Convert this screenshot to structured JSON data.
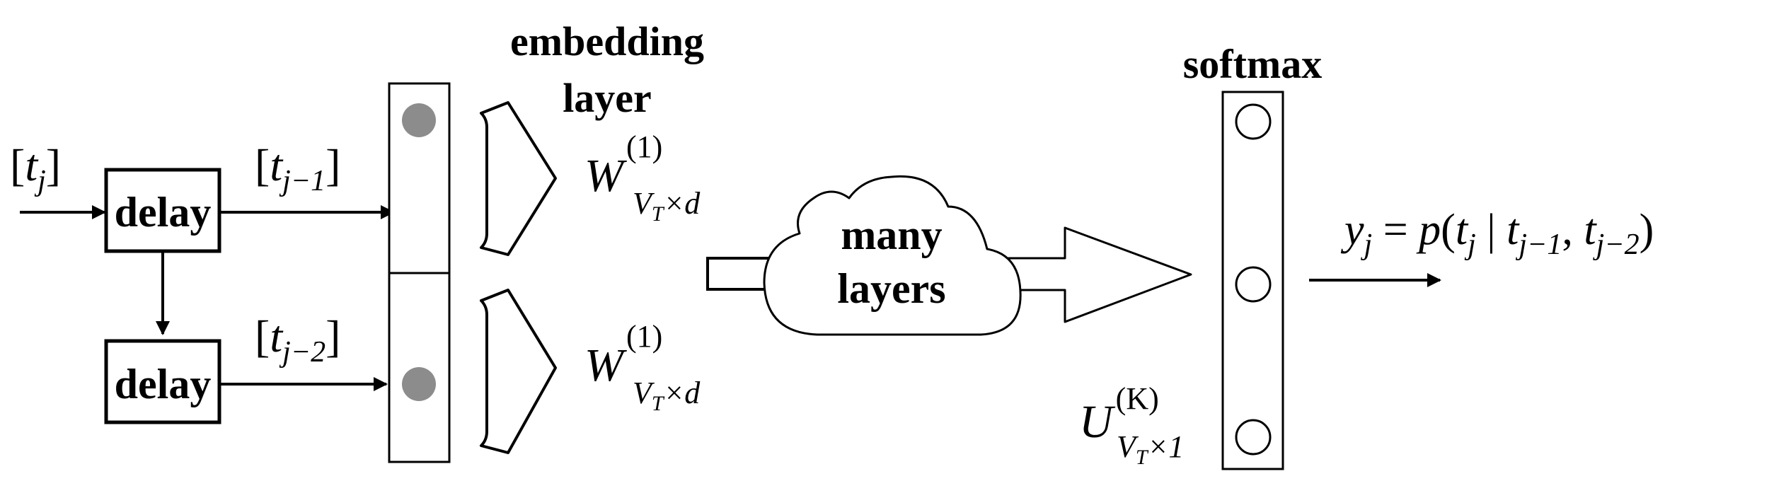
{
  "labels": {
    "delay_top": "delay",
    "delay_bottom": "delay",
    "embedding_line1": "embedding",
    "embedding_line2": "layer",
    "many_line1": "many",
    "many_line2": "layers",
    "softmax": "softmax"
  },
  "math": {
    "input_token": {
      "open": "[",
      "base": "t",
      "sub": "j",
      "close": "]"
    },
    "prev1_token": {
      "open": "[",
      "base": "t",
      "sub": "j−1",
      "close": "]"
    },
    "prev2_token": {
      "open": "[",
      "base": "t",
      "sub": "j−2",
      "close": "]"
    },
    "weight_top": {
      "base": "W",
      "sup": "(1)",
      "sub_main": "V",
      "sub_sub": "T",
      "sub_rest": "×d"
    },
    "weight_bottom": {
      "base": "W",
      "sup": "(1)",
      "sub_main": "V",
      "sub_sub": "T",
      "sub_rest": "×d"
    },
    "weight_softmax": {
      "base": "U",
      "sup": "(K)",
      "sub_main": "V",
      "sub_sub": "T",
      "sub_rest": "×1"
    },
    "output": {
      "lhs": "y",
      "lhs_sub": "j",
      "eq": " = ",
      "fn": "p",
      "open": "(",
      "t1": "t",
      "t1_sub": "j",
      "bar": " | ",
      "t2": "t",
      "t2_sub": "j−1",
      "comma": ", ",
      "t3": "t",
      "t3_sub": "j−2",
      "close": ")"
    }
  },
  "colors": {
    "stroke": "#000000",
    "embedding_node": "#8c8c8c",
    "background": "#ffffff"
  }
}
